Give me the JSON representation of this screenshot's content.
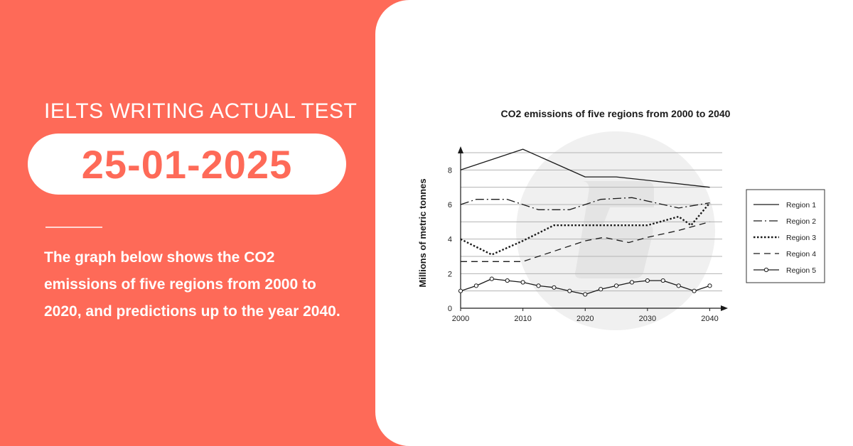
{
  "left_panel": {
    "heading": "IELTS WRITING ACTUAL TEST",
    "date": "25-01-2025",
    "description": "The graph below shows the CO2 emissions of five regions from 2000 to 2020, and predictions up to the year 2040."
  },
  "colors": {
    "background": "#fe6a58",
    "card": "#ffffff",
    "line": "#1a1a1a",
    "watermark": "#efefef"
  },
  "chart_data": {
    "type": "line",
    "title": "CO2 emissions of five regions from 2000 to 2040",
    "xlabel": "",
    "ylabel": "Millions of metric tonnes",
    "xlim": [
      2000,
      2042
    ],
    "ylim": [
      0,
      9
    ],
    "x_ticks": [
      2000,
      2010,
      2020,
      2030,
      2040
    ],
    "x_tick_labels": [
      "2000",
      "2010",
      "2020",
      "2030",
      "2040"
    ],
    "y_ticks": [
      0,
      2,
      4,
      6,
      8
    ],
    "y_tick_labels": [
      "0",
      "2",
      "4",
      "6",
      "8"
    ],
    "grid": "horizontal",
    "legend_position": "right",
    "series": [
      {
        "name": "Region 1",
        "style": "solid",
        "x": [
          2000,
          2010,
          2020,
          2025,
          2030,
          2040
        ],
        "y": [
          8,
          9.2,
          7.6,
          7.6,
          7.4,
          7
        ]
      },
      {
        "name": "Region 2",
        "style": "dashdot",
        "x": [
          2000,
          2002.5,
          2007.5,
          2010,
          2012.5,
          2017.5,
          2020,
          2022.5,
          2027.5,
          2030,
          2035,
          2040
        ],
        "y": [
          6,
          6.3,
          6.3,
          6,
          5.7,
          5.7,
          6,
          6.3,
          6.4,
          6.2,
          5.8,
          6.1
        ]
      },
      {
        "name": "Region 3",
        "style": "dotted",
        "x": [
          2000,
          2005,
          2010,
          2015,
          2020,
          2025,
          2030,
          2035,
          2037,
          2040
        ],
        "y": [
          4,
          3.1,
          3.9,
          4.8,
          4.8,
          4.8,
          4.8,
          5.3,
          4.8,
          6.1
        ]
      },
      {
        "name": "Region 4",
        "style": "dashed",
        "x": [
          2000,
          2010,
          2015,
          2020,
          2023,
          2027,
          2030,
          2035,
          2040
        ],
        "y": [
          2.7,
          2.7,
          3.3,
          3.9,
          4.1,
          3.8,
          4.1,
          4.5,
          5
        ]
      },
      {
        "name": "Region 5",
        "style": "circle-markers",
        "x": [
          2000,
          2002.5,
          2005,
          2007.5,
          2010,
          2012.5,
          2015,
          2017.5,
          2020,
          2022.5,
          2025,
          2027.5,
          2030,
          2032.5,
          2035,
          2037.5,
          2040
        ],
        "y": [
          1,
          1.3,
          1.7,
          1.6,
          1.5,
          1.3,
          1.2,
          1,
          0.8,
          1.1,
          1.3,
          1.5,
          1.6,
          1.6,
          1.3,
          1,
          1.3
        ]
      }
    ]
  }
}
